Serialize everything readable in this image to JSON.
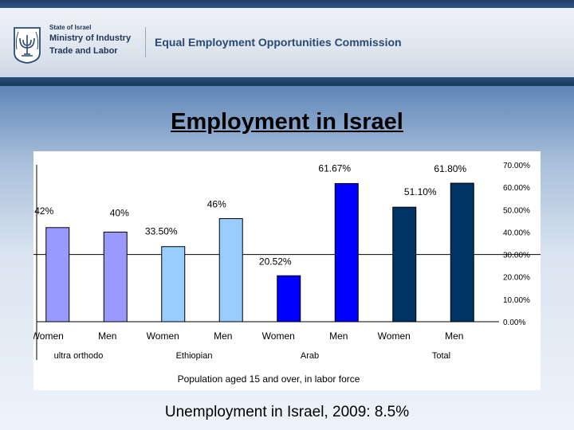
{
  "header": {
    "state_label": "State of Israel",
    "ministry_line1": "Ministry of Industry",
    "ministry_line2": "Trade and Labor",
    "commission": "Equal Employment Opportunities Commission",
    "colors": {
      "navy": "#1f3e66",
      "text": "#2a4a74"
    }
  },
  "slide": {
    "title": "Employment in Israel",
    "footnote": "Unemployment in Israel, 2009: 8.5%"
  },
  "chart_data": {
    "type": "bar",
    "xlabel": "Population aged 15 and over, in  labor force",
    "ylabel": "",
    "ylim": [
      0,
      70
    ],
    "yaxis_side": "right",
    "y_ticks": [
      "0.00%",
      "10.00%",
      "20.00%",
      "30.00%",
      "40.00%",
      "50.00%",
      "60.00%",
      "70.00%"
    ],
    "reference_line": 30,
    "categories": [
      "Women",
      "Men",
      "Women",
      "Men",
      "Women",
      "Men",
      "Women",
      "Men"
    ],
    "groups": [
      {
        "label": "ultra orthodo",
        "span": [
          0,
          1
        ]
      },
      {
        "label": "Ethiopian",
        "span": [
          2,
          3
        ]
      },
      {
        "label": "Arab",
        "span": [
          4,
          5
        ]
      },
      {
        "label": "Total",
        "span": [
          6,
          7
        ]
      }
    ],
    "values": [
      42,
      40,
      33.5,
      46,
      20.52,
      61.67,
      51.1,
      61.8
    ],
    "value_labels": [
      "42%",
      "40%",
      "33.50%",
      "46%",
      "20.52%",
      "61.67%",
      "51.10%",
      "61.80%"
    ],
    "bar_colors": [
      "#9999ff",
      "#9999ff",
      "#99ccff",
      "#99ccff",
      "#0000ff",
      "#0000ff",
      "#003366",
      "#003366"
    ]
  }
}
